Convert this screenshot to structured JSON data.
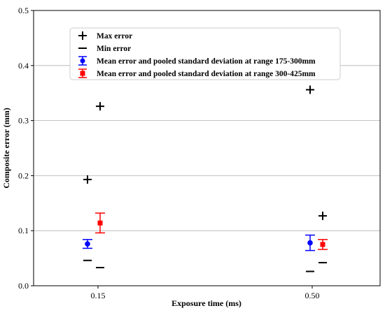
{
  "chart_data": {
    "type": "scatter",
    "xlabel": "Exposure time (ms)",
    "ylabel": "Composite error (mm)",
    "categories": [
      "0.15",
      "0.50"
    ],
    "ylim": [
      0,
      0.5
    ],
    "yticks": [
      "0.0",
      "0.1",
      "0.2",
      "0.3",
      "0.4",
      "0.5"
    ],
    "grid": "horizontal",
    "legend_position": "top-left",
    "series": [
      {
        "name": "Max error",
        "marker": "plus",
        "color": "#000000",
        "points": [
          {
            "category": "0.15",
            "y": 0.193
          },
          {
            "category": "0.15",
            "y": 0.326
          },
          {
            "category": "0.50",
            "y": 0.356
          },
          {
            "category": "0.50",
            "y": 0.127
          }
        ]
      },
      {
        "name": "Min error",
        "marker": "dash",
        "color": "#000000",
        "points": [
          {
            "category": "0.15",
            "y": 0.046
          },
          {
            "category": "0.15",
            "y": 0.033
          },
          {
            "category": "0.50",
            "y": 0.026
          },
          {
            "category": "0.50",
            "y": 0.042
          }
        ]
      },
      {
        "name": "Mean error and pooled standard deviation at range 175-300mm",
        "marker": "circle",
        "color": "#0000ff",
        "points": [
          {
            "category": "0.15",
            "y": 0.076,
            "err": 0.008
          },
          {
            "category": "0.50",
            "y": 0.078,
            "err": 0.014
          }
        ]
      },
      {
        "name": "Mean error and pooled standard deviation at range 300-425mm",
        "marker": "square",
        "color": "#ff0000",
        "points": [
          {
            "category": "0.15",
            "y": 0.114,
            "err": 0.018
          },
          {
            "category": "0.50",
            "y": 0.075,
            "err": 0.009
          }
        ]
      }
    ]
  }
}
